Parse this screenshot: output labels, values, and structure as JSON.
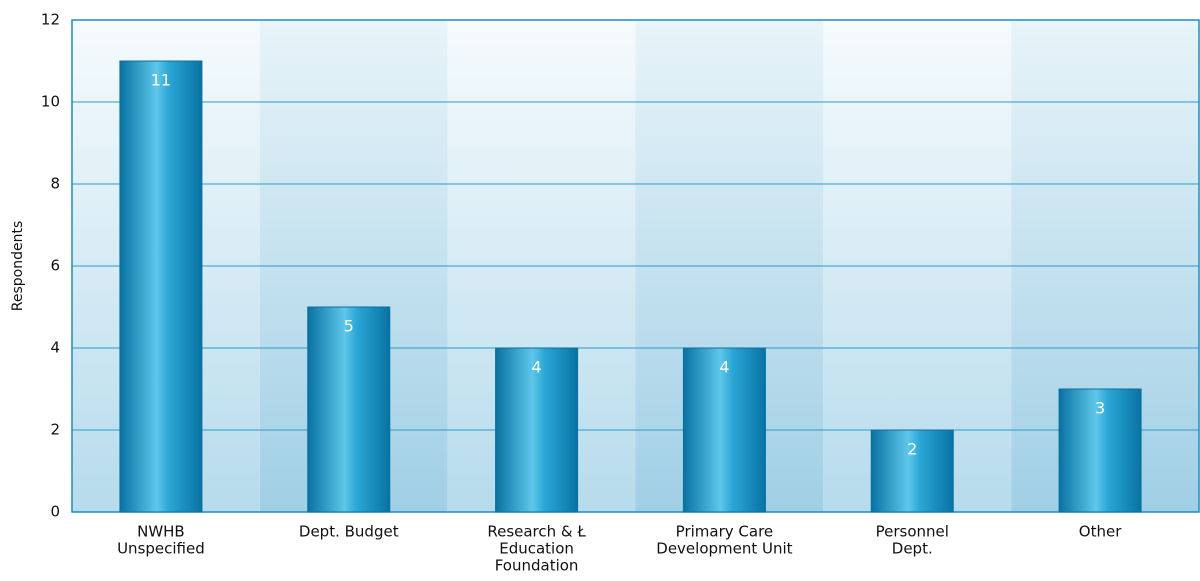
{
  "chart_data": {
    "type": "bar",
    "ylabel": "Respondents",
    "categories": [
      [
        "NWHB",
        "Unspecified"
      ],
      [
        "Dept. Budget"
      ],
      [
        "Research & Ł",
        "Education",
        "Foundation"
      ],
      [
        "Primary Care",
        "Development Unit"
      ],
      [
        "Personnel",
        "Dept."
      ],
      [
        "Other"
      ]
    ],
    "values": [
      11,
      5,
      4,
      4,
      2,
      3
    ],
    "color": "#1590c2",
    "ylim": [
      0,
      12
    ],
    "yticks": [
      0,
      2,
      4,
      6,
      8,
      10,
      12
    ],
    "grid": true
  }
}
